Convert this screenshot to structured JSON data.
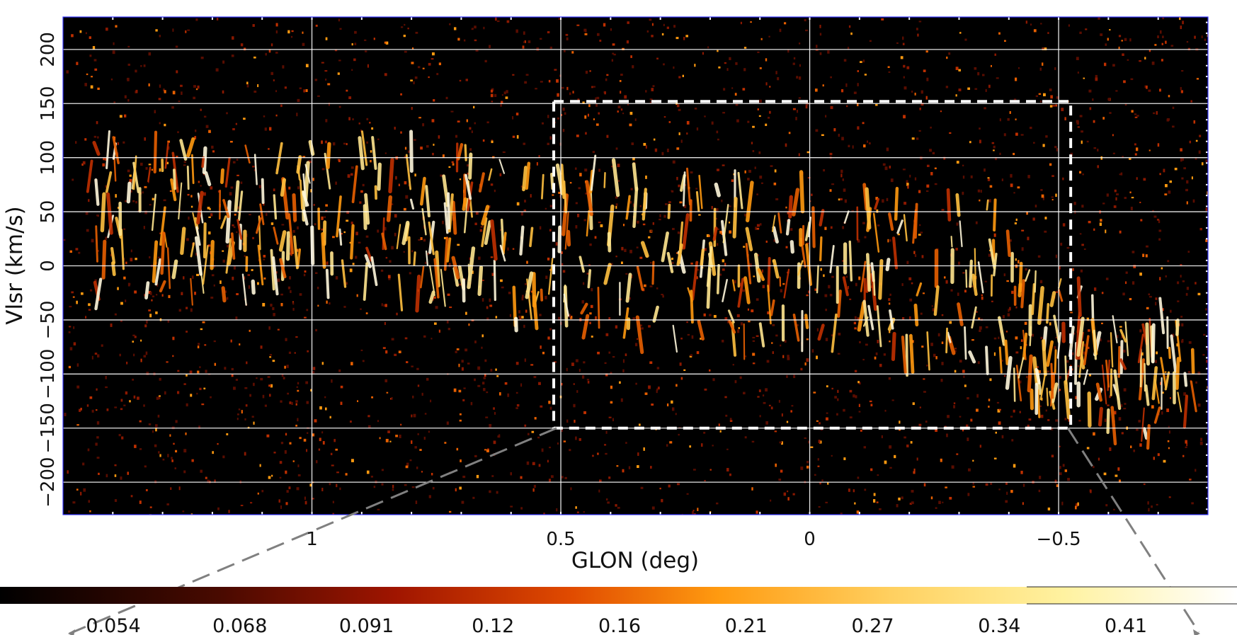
{
  "chart_data": {
    "type": "heatmap",
    "title": "",
    "xlabel": "GLON (deg)",
    "ylabel": "Vlsr (km/s)",
    "xlim": [
      1.5,
      -0.8
    ],
    "ylim": [
      -230,
      230
    ],
    "x_axis_inverted": true,
    "grid": true,
    "x_ticks": [
      {
        "value": 1,
        "label": "1"
      },
      {
        "value": 0.5,
        "label": "0.5"
      },
      {
        "value": 0,
        "label": "0"
      },
      {
        "value": -0.5,
        "label": "−0.5"
      }
    ],
    "y_ticks": [
      {
        "value": 200,
        "label": "200"
      },
      {
        "value": 150,
        "label": "150"
      },
      {
        "value": 100,
        "label": "100"
      },
      {
        "value": 50,
        "label": "50"
      },
      {
        "value": 0,
        "label": "0"
      },
      {
        "value": -50,
        "label": "−50"
      },
      {
        "value": -100,
        "label": "−100"
      },
      {
        "value": -150,
        "label": "−150"
      },
      {
        "value": -200,
        "label": "−200"
      }
    ],
    "colormap": "heat (black → red → orange → yellow → white)",
    "colorbar": {
      "orientation": "horizontal",
      "placement": "bottom",
      "tick_labels": [
        "0.054",
        "0.068",
        "0.091",
        "0.12",
        "0.16",
        "0.21",
        "0.27",
        "0.34",
        "0.41"
      ]
    },
    "highlight_box": {
      "style": "white dashed rectangle",
      "glon_range": [
        0.5,
        -0.52
      ],
      "vlsr_range": [
        -150,
        152
      ]
    },
    "zoom_connector": {
      "style": "grey dashed lines",
      "direction": "down-left and down-right"
    },
    "colors": {
      "background": "#000000",
      "grid": "#ffffff",
      "frame": "#3333ff",
      "connector": "#808080"
    }
  }
}
